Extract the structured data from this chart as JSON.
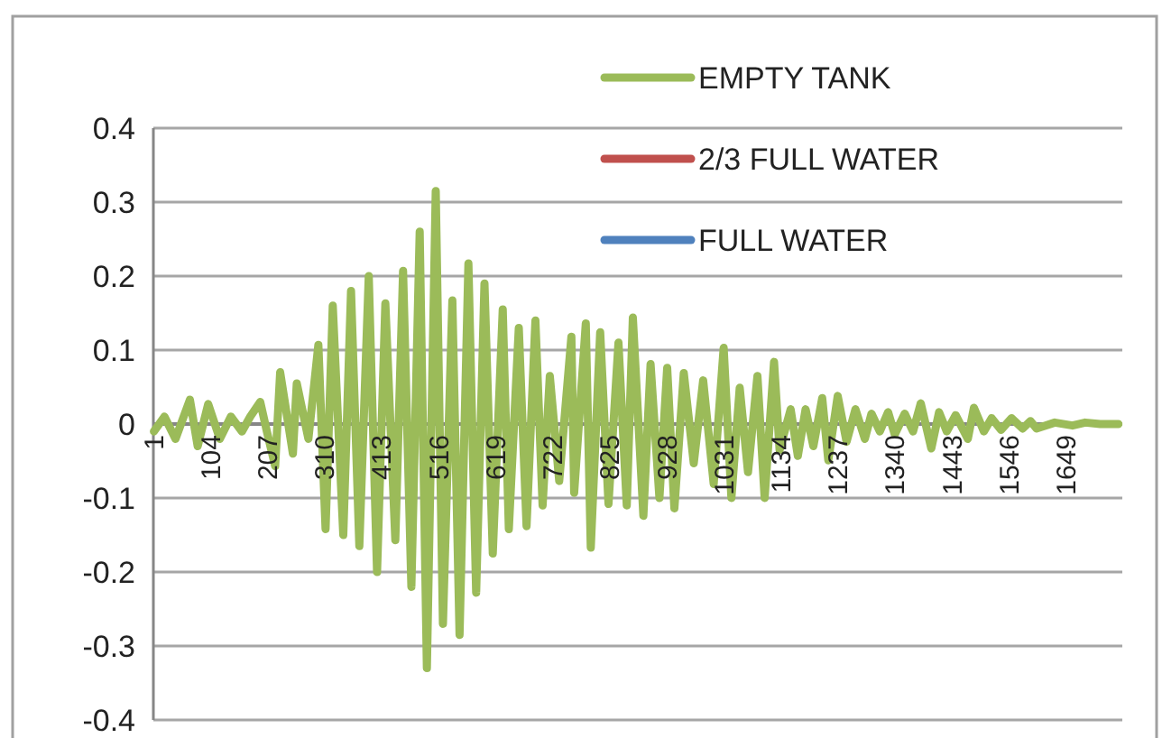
{
  "chart_data": {
    "type": "line",
    "xlim": [
      0,
      1750
    ],
    "ylim": [
      -0.4,
      0.4
    ],
    "xticks": [
      1,
      104,
      207,
      310,
      413,
      516,
      619,
      722,
      825,
      928,
      1031,
      1134,
      1237,
      1340,
      1443,
      1546,
      1649
    ],
    "yticks": [
      -0.4,
      -0.3,
      -0.2,
      -0.1,
      0,
      0.1,
      0.2,
      0.3,
      0.4
    ],
    "grid": "y",
    "legend": "top right",
    "series": [
      {
        "name": "EMPTY TANK",
        "color": "#9bbb59",
        "x": [
          1,
          20,
          40,
          66,
          80,
          99,
          120,
          140,
          160,
          175,
          193,
          205,
          220,
          229,
          252,
          259,
          280,
          298,
          311,
          324,
          343,
          357,
          372,
          389,
          404,
          419,
          437,
          451,
          466,
          481,
          494,
          510,
          523,
          540,
          553,
          569,
          583,
          598,
          613,
          631,
          642,
          660,
          674,
          690,
          703,
          716,
          733,
          755,
          760,
          781,
          790,
          807,
          822,
          840,
          855,
          866,
          885,
          898,
          914,
          928,
          941,
          958,
          976,
          993,
          1012,
          1030,
          1044,
          1059,
          1074,
          1091,
          1104,
          1121,
          1131,
          1151,
          1164,
          1178,
          1192,
          1208,
          1219,
          1236,
          1252,
          1268,
          1285,
          1297,
          1312,
          1327,
          1339,
          1357,
          1372,
          1386,
          1405,
          1419,
          1433,
          1449,
          1471,
          1482,
          1500,
          1514,
          1531,
          1550,
          1570,
          1584,
          1595,
          1628,
          1660,
          1683,
          1710,
          1743
        ],
        "values": [
          -0.01,
          0.01,
          -0.02,
          0.033,
          -0.03,
          0.027,
          -0.02,
          0.01,
          -0.01,
          0.01,
          0.03,
          -0.01,
          -0.057,
          0.07,
          -0.04,
          0.055,
          -0.02,
          0.107,
          -0.142,
          0.16,
          -0.15,
          0.18,
          -0.165,
          0.2,
          -0.2,
          0.163,
          -0.157,
          0.207,
          -0.22,
          0.26,
          -0.33,
          0.315,
          -0.27,
          0.167,
          -0.285,
          0.217,
          -0.228,
          0.19,
          -0.175,
          0.155,
          -0.142,
          0.13,
          -0.138,
          0.14,
          -0.11,
          0.065,
          -0.077,
          0.118,
          -0.093,
          0.136,
          -0.167,
          0.124,
          -0.108,
          0.11,
          -0.11,
          0.144,
          -0.124,
          0.081,
          -0.1,
          0.076,
          -0.114,
          0.069,
          -0.053,
          0.059,
          -0.081,
          0.103,
          -0.1,
          0.049,
          -0.065,
          0.065,
          -0.1,
          0.084,
          -0.035,
          0.02,
          -0.043,
          0.02,
          -0.03,
          0.035,
          -0.049,
          0.038,
          -0.024,
          0.02,
          -0.02,
          0.014,
          -0.01,
          0.016,
          -0.014,
          0.014,
          -0.01,
          0.028,
          -0.033,
          0.016,
          -0.01,
          0.012,
          -0.02,
          0.022,
          -0.01,
          0.008,
          -0.008,
          0.008,
          -0.006,
          0.004,
          -0.006,
          0.002,
          -0.002,
          0.002,
          0,
          0
        ]
      },
      {
        "name": "2/3 FULL WATER",
        "color": "#c0504d"
      },
      {
        "name": "FULL WATER",
        "color": "#4f81bd"
      }
    ]
  }
}
